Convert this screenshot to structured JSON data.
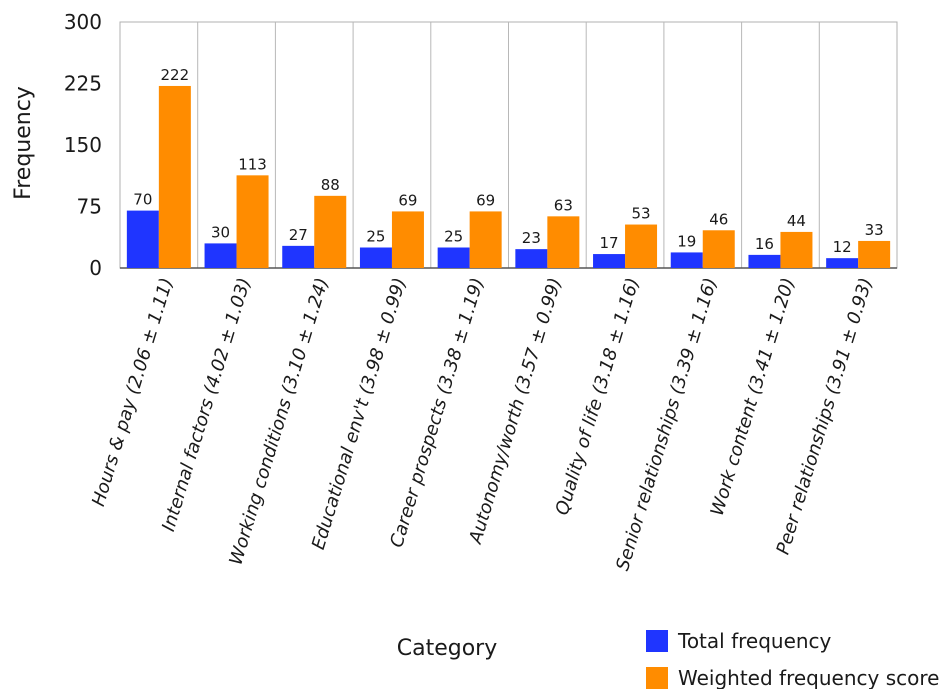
{
  "chart_data": {
    "type": "bar",
    "xlabel": "Category",
    "ylabel": "Frequency",
    "ylim": [
      0,
      300
    ],
    "yticks": [
      0,
      75,
      150,
      225,
      300
    ],
    "grid": "vertical",
    "legend_position": "bottom-right",
    "categories": [
      "Hours & pay (2.06 ± 1.11)",
      "Internal factors (4.02 ± 1.03)",
      "Working conditions (3.10 ± 1.24)",
      "Educational env't (3.98 ± 0.99)",
      "Career prospects (3.38 ± 1.19)",
      "Autonomy/worth (3.57 ± 0.99)",
      "Quality of life (3.18 ± 1.16)",
      "Senior relationships (3.39 ± 1.16)",
      "Work content (3.41 ± 1.20)",
      "Peer relationships (3.91 ± 0.93)"
    ],
    "series": [
      {
        "name": "Total frequency",
        "color": "#1f35ff",
        "values": [
          70,
          30,
          27,
          25,
          25,
          23,
          17,
          19,
          16,
          12
        ]
      },
      {
        "name": "Weighted frequency score",
        "color": "#ff8c00",
        "values": [
          222,
          113,
          88,
          69,
          69,
          63,
          53,
          46,
          44,
          33
        ]
      }
    ]
  }
}
